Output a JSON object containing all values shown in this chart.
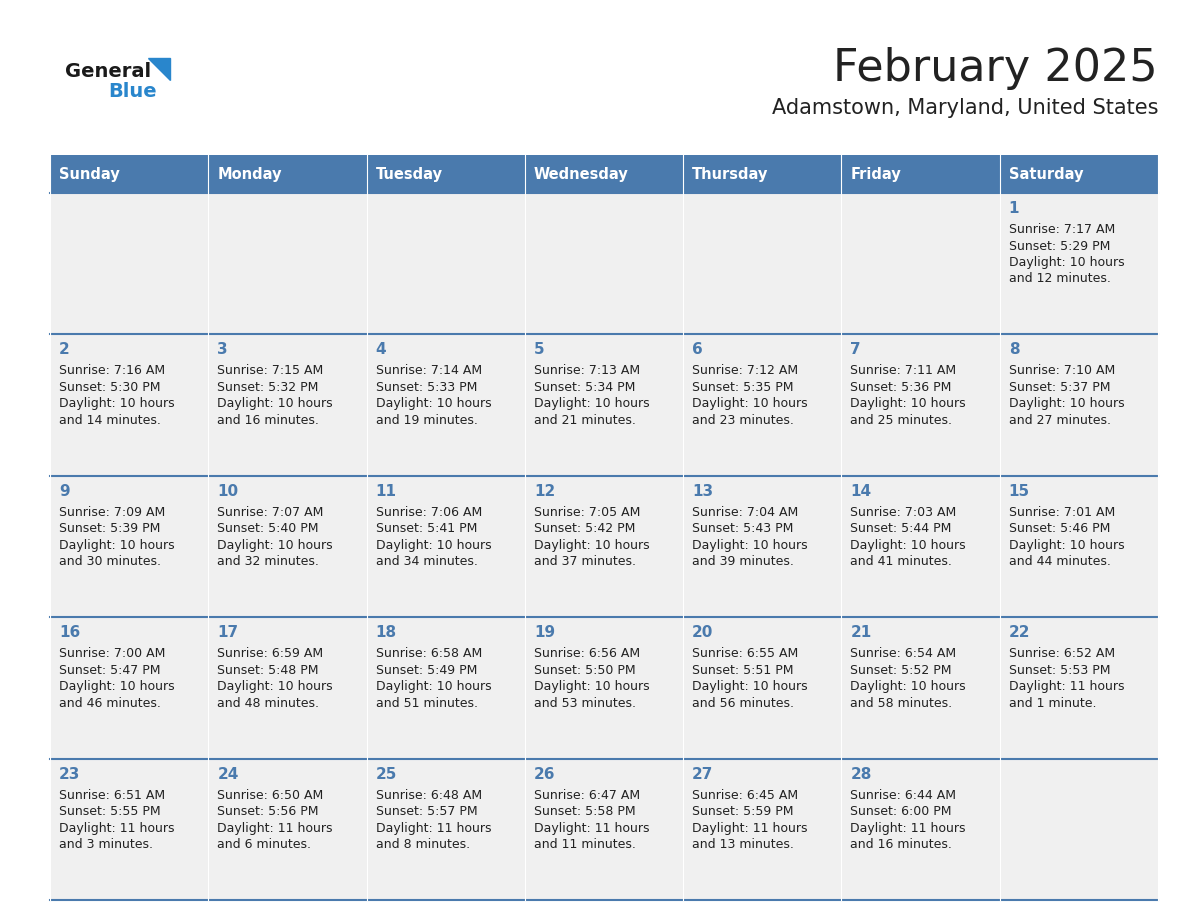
{
  "title": "February 2025",
  "subtitle": "Adamstown, Maryland, United States",
  "days_of_week": [
    "Sunday",
    "Monday",
    "Tuesday",
    "Wednesday",
    "Thursday",
    "Friday",
    "Saturday"
  ],
  "header_bg": "#4a7aad",
  "header_text": "#ffffff",
  "cell_bg": "#f0f0f0",
  "divider_color": "#4a7aad",
  "day_num_color": "#4a7aad",
  "text_color": "#222222",
  "calendar": [
    [
      null,
      null,
      null,
      null,
      null,
      null,
      {
        "day": 1,
        "sunrise": "7:17 AM",
        "sunset": "5:29 PM",
        "daylight_line1": "Daylight: 10 hours",
        "daylight_line2": "and 12 minutes."
      }
    ],
    [
      {
        "day": 2,
        "sunrise": "7:16 AM",
        "sunset": "5:30 PM",
        "daylight_line1": "Daylight: 10 hours",
        "daylight_line2": "and 14 minutes."
      },
      {
        "day": 3,
        "sunrise": "7:15 AM",
        "sunset": "5:32 PM",
        "daylight_line1": "Daylight: 10 hours",
        "daylight_line2": "and 16 minutes."
      },
      {
        "day": 4,
        "sunrise": "7:14 AM",
        "sunset": "5:33 PM",
        "daylight_line1": "Daylight: 10 hours",
        "daylight_line2": "and 19 minutes."
      },
      {
        "day": 5,
        "sunrise": "7:13 AM",
        "sunset": "5:34 PM",
        "daylight_line1": "Daylight: 10 hours",
        "daylight_line2": "and 21 minutes."
      },
      {
        "day": 6,
        "sunrise": "7:12 AM",
        "sunset": "5:35 PM",
        "daylight_line1": "Daylight: 10 hours",
        "daylight_line2": "and 23 minutes."
      },
      {
        "day": 7,
        "sunrise": "7:11 AM",
        "sunset": "5:36 PM",
        "daylight_line1": "Daylight: 10 hours",
        "daylight_line2": "and 25 minutes."
      },
      {
        "day": 8,
        "sunrise": "7:10 AM",
        "sunset": "5:37 PM",
        "daylight_line1": "Daylight: 10 hours",
        "daylight_line2": "and 27 minutes."
      }
    ],
    [
      {
        "day": 9,
        "sunrise": "7:09 AM",
        "sunset": "5:39 PM",
        "daylight_line1": "Daylight: 10 hours",
        "daylight_line2": "and 30 minutes."
      },
      {
        "day": 10,
        "sunrise": "7:07 AM",
        "sunset": "5:40 PM",
        "daylight_line1": "Daylight: 10 hours",
        "daylight_line2": "and 32 minutes."
      },
      {
        "day": 11,
        "sunrise": "7:06 AM",
        "sunset": "5:41 PM",
        "daylight_line1": "Daylight: 10 hours",
        "daylight_line2": "and 34 minutes."
      },
      {
        "day": 12,
        "sunrise": "7:05 AM",
        "sunset": "5:42 PM",
        "daylight_line1": "Daylight: 10 hours",
        "daylight_line2": "and 37 minutes."
      },
      {
        "day": 13,
        "sunrise": "7:04 AM",
        "sunset": "5:43 PM",
        "daylight_line1": "Daylight: 10 hours",
        "daylight_line2": "and 39 minutes."
      },
      {
        "day": 14,
        "sunrise": "7:03 AM",
        "sunset": "5:44 PM",
        "daylight_line1": "Daylight: 10 hours",
        "daylight_line2": "and 41 minutes."
      },
      {
        "day": 15,
        "sunrise": "7:01 AM",
        "sunset": "5:46 PM",
        "daylight_line1": "Daylight: 10 hours",
        "daylight_line2": "and 44 minutes."
      }
    ],
    [
      {
        "day": 16,
        "sunrise": "7:00 AM",
        "sunset": "5:47 PM",
        "daylight_line1": "Daylight: 10 hours",
        "daylight_line2": "and 46 minutes."
      },
      {
        "day": 17,
        "sunrise": "6:59 AM",
        "sunset": "5:48 PM",
        "daylight_line1": "Daylight: 10 hours",
        "daylight_line2": "and 48 minutes."
      },
      {
        "day": 18,
        "sunrise": "6:58 AM",
        "sunset": "5:49 PM",
        "daylight_line1": "Daylight: 10 hours",
        "daylight_line2": "and 51 minutes."
      },
      {
        "day": 19,
        "sunrise": "6:56 AM",
        "sunset": "5:50 PM",
        "daylight_line1": "Daylight: 10 hours",
        "daylight_line2": "and 53 minutes."
      },
      {
        "day": 20,
        "sunrise": "6:55 AM",
        "sunset": "5:51 PM",
        "daylight_line1": "Daylight: 10 hours",
        "daylight_line2": "and 56 minutes."
      },
      {
        "day": 21,
        "sunrise": "6:54 AM",
        "sunset": "5:52 PM",
        "daylight_line1": "Daylight: 10 hours",
        "daylight_line2": "and 58 minutes."
      },
      {
        "day": 22,
        "sunrise": "6:52 AM",
        "sunset": "5:53 PM",
        "daylight_line1": "Daylight: 11 hours",
        "daylight_line2": "and 1 minute."
      }
    ],
    [
      {
        "day": 23,
        "sunrise": "6:51 AM",
        "sunset": "5:55 PM",
        "daylight_line1": "Daylight: 11 hours",
        "daylight_line2": "and 3 minutes."
      },
      {
        "day": 24,
        "sunrise": "6:50 AM",
        "sunset": "5:56 PM",
        "daylight_line1": "Daylight: 11 hours",
        "daylight_line2": "and 6 minutes."
      },
      {
        "day": 25,
        "sunrise": "6:48 AM",
        "sunset": "5:57 PM",
        "daylight_line1": "Daylight: 11 hours",
        "daylight_line2": "and 8 minutes."
      },
      {
        "day": 26,
        "sunrise": "6:47 AM",
        "sunset": "5:58 PM",
        "daylight_line1": "Daylight: 11 hours",
        "daylight_line2": "and 11 minutes."
      },
      {
        "day": 27,
        "sunrise": "6:45 AM",
        "sunset": "5:59 PM",
        "daylight_line1": "Daylight: 11 hours",
        "daylight_line2": "and 13 minutes."
      },
      {
        "day": 28,
        "sunrise": "6:44 AM",
        "sunset": "6:00 PM",
        "daylight_line1": "Daylight: 11 hours",
        "daylight_line2": "and 16 minutes."
      },
      null
    ]
  ],
  "logo_general_color": "#1a1a1a",
  "logo_blue_color": "#2986cc"
}
